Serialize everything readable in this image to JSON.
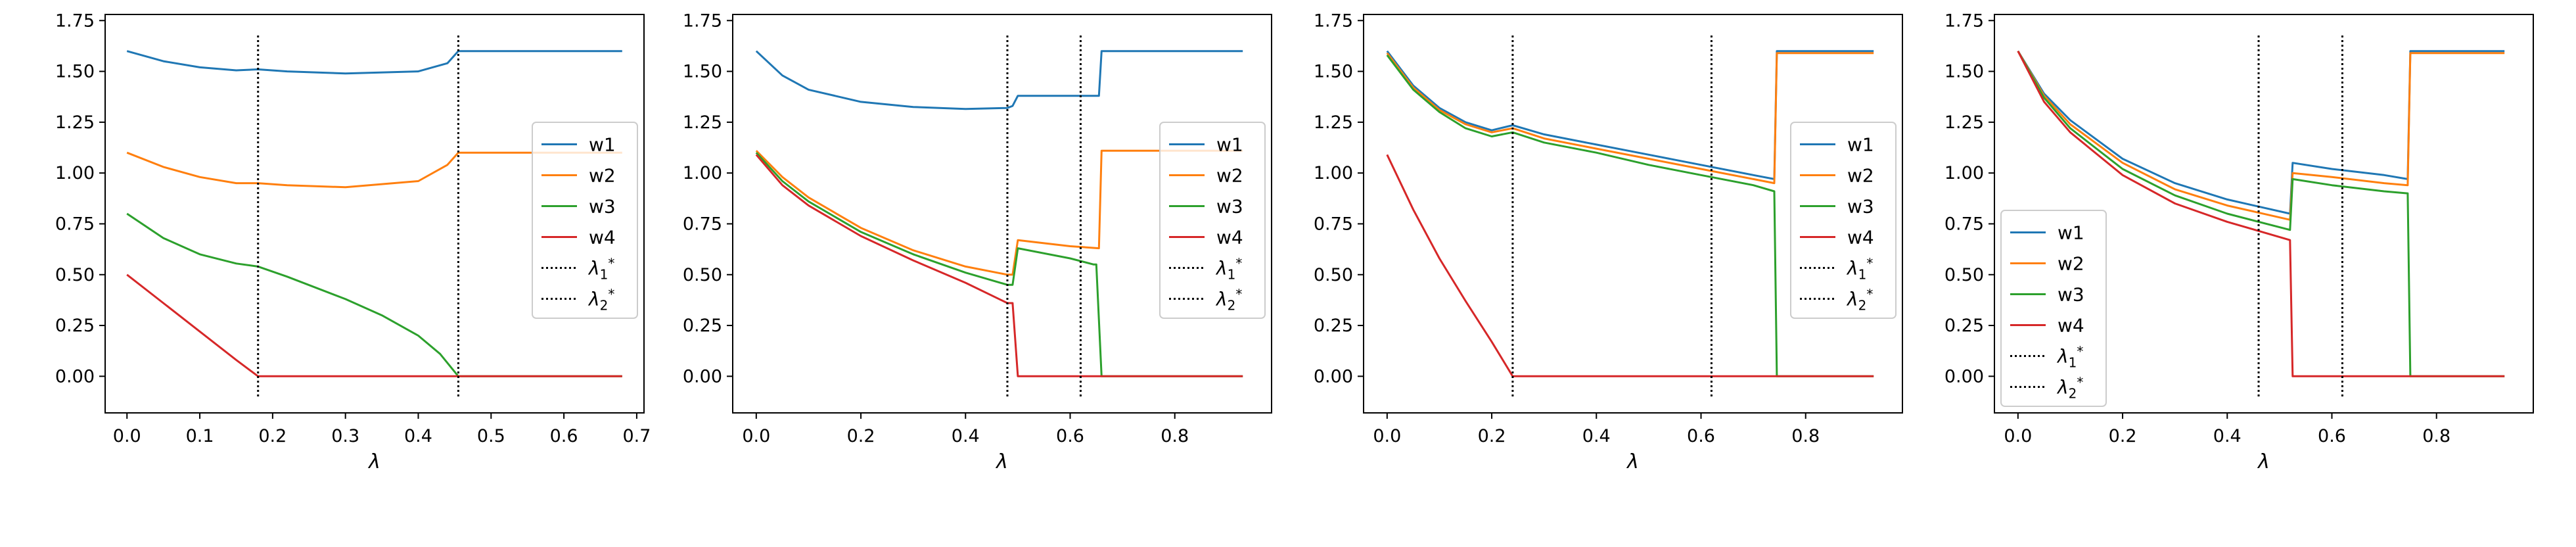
{
  "figure": {
    "panel_count": 4
  },
  "series_colors": {
    "w1": "#1f77b4",
    "w2": "#ff7f0e",
    "w3": "#2ca02c",
    "w4": "#d62728"
  },
  "chart_data": [
    {
      "type": "line",
      "xlabel": "λ",
      "xlim": [
        -0.03,
        0.71
      ],
      "ylim": [
        -0.18,
        1.78
      ],
      "xticks": [
        "0.0",
        "0.1",
        "0.2",
        "0.3",
        "0.4",
        "0.5",
        "0.6",
        "0.7"
      ],
      "yticks": [
        "0.00",
        "0.25",
        "0.50",
        "0.75",
        "1.00",
        "1.25",
        "1.50",
        "1.75"
      ],
      "legend_position": "right",
      "series": [
        {
          "name": "w1",
          "color": "#1f77b4",
          "x": [
            0,
            0.05,
            0.1,
            0.15,
            0.18,
            0.22,
            0.3,
            0.4,
            0.44,
            0.455,
            0.5,
            0.6,
            0.68
          ],
          "y": [
            1.6,
            1.55,
            1.52,
            1.505,
            1.51,
            1.5,
            1.49,
            1.5,
            1.54,
            1.6,
            1.6,
            1.6,
            1.6
          ]
        },
        {
          "name": "w2",
          "color": "#ff7f0e",
          "x": [
            0,
            0.05,
            0.1,
            0.15,
            0.18,
            0.22,
            0.3,
            0.4,
            0.44,
            0.455,
            0.5,
            0.6,
            0.68
          ],
          "y": [
            1.1,
            1.03,
            0.98,
            0.95,
            0.95,
            0.94,
            0.93,
            0.96,
            1.04,
            1.1,
            1.1,
            1.1,
            1.1
          ]
        },
        {
          "name": "w3",
          "color": "#2ca02c",
          "x": [
            0,
            0.05,
            0.1,
            0.15,
            0.18,
            0.22,
            0.3,
            0.35,
            0.4,
            0.43,
            0.455,
            0.5,
            0.6,
            0.68
          ],
          "y": [
            0.8,
            0.68,
            0.6,
            0.555,
            0.54,
            0.49,
            0.38,
            0.3,
            0.2,
            0.11,
            0.0,
            0.0,
            0.0,
            0.0
          ]
        },
        {
          "name": "w4",
          "color": "#d62728",
          "x": [
            0,
            0.05,
            0.1,
            0.15,
            0.18,
            0.25,
            0.4,
            0.55,
            0.68
          ],
          "y": [
            0.5,
            0.36,
            0.22,
            0.08,
            0.0,
            0.0,
            0.0,
            0.0,
            0.0
          ]
        }
      ],
      "vlines": [
        {
          "label": "λ1*",
          "x": 0.18
        },
        {
          "label": "λ2*",
          "x": 0.455
        }
      ]
    },
    {
      "type": "line",
      "xlabel": "λ",
      "xlim": [
        -0.045,
        0.985
      ],
      "ylim": [
        -0.18,
        1.78
      ],
      "xticks": [
        "0.0",
        "0.2",
        "0.4",
        "0.6",
        "0.8"
      ],
      "yticks": [
        "0.00",
        "0.25",
        "0.50",
        "0.75",
        "1.00",
        "1.25",
        "1.50",
        "1.75"
      ],
      "legend_position": "right",
      "series": [
        {
          "name": "w1",
          "color": "#1f77b4",
          "x": [
            0,
            0.05,
            0.1,
            0.2,
            0.3,
            0.4,
            0.48,
            0.49,
            0.5,
            0.6,
            0.655,
            0.66,
            0.8,
            0.93
          ],
          "y": [
            1.6,
            1.48,
            1.41,
            1.35,
            1.325,
            1.315,
            1.32,
            1.33,
            1.38,
            1.38,
            1.38,
            1.6,
            1.6,
            1.6
          ]
        },
        {
          "name": "w2",
          "color": "#ff7f0e",
          "x": [
            0,
            0.05,
            0.1,
            0.2,
            0.3,
            0.4,
            0.48,
            0.49,
            0.5,
            0.6,
            0.655,
            0.66,
            0.8,
            0.93
          ],
          "y": [
            1.11,
            0.98,
            0.88,
            0.73,
            0.62,
            0.54,
            0.5,
            0.5,
            0.67,
            0.64,
            0.63,
            1.11,
            1.11,
            1.11
          ]
        },
        {
          "name": "w3",
          "color": "#2ca02c",
          "x": [
            0,
            0.05,
            0.1,
            0.2,
            0.3,
            0.4,
            0.48,
            0.49,
            0.5,
            0.6,
            0.645,
            0.65,
            0.66,
            0.8,
            0.93
          ],
          "y": [
            1.1,
            0.96,
            0.86,
            0.71,
            0.6,
            0.51,
            0.45,
            0.45,
            0.63,
            0.58,
            0.55,
            0.55,
            0.0,
            0.0,
            0.0
          ]
        },
        {
          "name": "w4",
          "color": "#d62728",
          "x": [
            0,
            0.05,
            0.1,
            0.2,
            0.3,
            0.4,
            0.48,
            0.49,
            0.5,
            0.6,
            0.8,
            0.93
          ],
          "y": [
            1.09,
            0.94,
            0.84,
            0.69,
            0.57,
            0.46,
            0.36,
            0.36,
            0.0,
            0.0,
            0.0,
            0.0
          ]
        }
      ],
      "vlines": [
        {
          "label": "λ1*",
          "x": 0.48
        },
        {
          "label": "λ2*",
          "x": 0.62
        }
      ]
    },
    {
      "type": "line",
      "xlabel": "λ",
      "xlim": [
        -0.045,
        0.985
      ],
      "ylim": [
        -0.18,
        1.78
      ],
      "xticks": [
        "0.0",
        "0.2",
        "0.4",
        "0.6",
        "0.8"
      ],
      "yticks": [
        "0.00",
        "0.25",
        "0.50",
        "0.75",
        "1.00",
        "1.25",
        "1.50",
        "1.75"
      ],
      "legend_position": "right",
      "series": [
        {
          "name": "w1",
          "color": "#1f77b4",
          "x": [
            0,
            0.05,
            0.1,
            0.15,
            0.2,
            0.24,
            0.3,
            0.4,
            0.5,
            0.6,
            0.7,
            0.74,
            0.745,
            0.8,
            0.93
          ],
          "y": [
            1.6,
            1.43,
            1.32,
            1.25,
            1.21,
            1.235,
            1.19,
            1.14,
            1.09,
            1.04,
            0.99,
            0.97,
            1.6,
            1.6,
            1.6
          ]
        },
        {
          "name": "w2",
          "color": "#ff7f0e",
          "x": [
            0,
            0.05,
            0.1,
            0.15,
            0.2,
            0.24,
            0.3,
            0.4,
            0.5,
            0.6,
            0.7,
            0.74,
            0.745,
            0.8,
            0.93
          ],
          "y": [
            1.59,
            1.42,
            1.31,
            1.24,
            1.2,
            1.22,
            1.17,
            1.12,
            1.07,
            1.02,
            0.97,
            0.95,
            1.59,
            1.59,
            1.59
          ]
        },
        {
          "name": "w3",
          "color": "#2ca02c",
          "x": [
            0,
            0.05,
            0.1,
            0.15,
            0.2,
            0.24,
            0.3,
            0.4,
            0.5,
            0.6,
            0.7,
            0.74,
            0.745,
            0.8,
            0.93
          ],
          "y": [
            1.58,
            1.41,
            1.3,
            1.22,
            1.18,
            1.2,
            1.15,
            1.1,
            1.04,
            0.99,
            0.94,
            0.91,
            0.0,
            0.0,
            0.0
          ]
        },
        {
          "name": "w4",
          "color": "#d62728",
          "x": [
            0,
            0.05,
            0.1,
            0.15,
            0.2,
            0.24,
            0.3,
            0.5,
            0.7,
            0.93
          ],
          "y": [
            1.09,
            0.82,
            0.58,
            0.37,
            0.17,
            0.0,
            0.0,
            0.0,
            0.0,
            0.0
          ]
        }
      ],
      "vlines": [
        {
          "label": "λ1*",
          "x": 0.24
        },
        {
          "label": "λ2*",
          "x": 0.62
        }
      ]
    },
    {
      "type": "line",
      "xlabel": "λ",
      "xlim": [
        -0.045,
        0.985
      ],
      "ylim": [
        -0.18,
        1.78
      ],
      "xticks": [
        "0.0",
        "0.2",
        "0.4",
        "0.6",
        "0.8"
      ],
      "yticks": [
        "0.00",
        "0.25",
        "0.50",
        "0.75",
        "1.00",
        "1.25",
        "1.50",
        "1.75"
      ],
      "legend_position": "lower-left",
      "series": [
        {
          "name": "w1",
          "color": "#1f77b4",
          "x": [
            0,
            0.05,
            0.1,
            0.2,
            0.3,
            0.4,
            0.52,
            0.525,
            0.6,
            0.7,
            0.745,
            0.75,
            0.8,
            0.93
          ],
          "y": [
            1.6,
            1.39,
            1.26,
            1.07,
            0.95,
            0.87,
            0.8,
            1.05,
            1.02,
            0.99,
            0.97,
            1.6,
            1.6,
            1.6
          ]
        },
        {
          "name": "w2",
          "color": "#ff7f0e",
          "x": [
            0,
            0.05,
            0.1,
            0.2,
            0.3,
            0.4,
            0.52,
            0.525,
            0.6,
            0.7,
            0.745,
            0.75,
            0.8,
            0.93
          ],
          "y": [
            1.6,
            1.38,
            1.24,
            1.05,
            0.92,
            0.84,
            0.77,
            1.0,
            0.98,
            0.95,
            0.94,
            1.59,
            1.59,
            1.59
          ]
        },
        {
          "name": "w3",
          "color": "#2ca02c",
          "x": [
            0,
            0.05,
            0.1,
            0.2,
            0.3,
            0.4,
            0.52,
            0.525,
            0.6,
            0.7,
            0.745,
            0.75,
            0.8,
            0.93
          ],
          "y": [
            1.6,
            1.37,
            1.22,
            1.02,
            0.89,
            0.8,
            0.72,
            0.97,
            0.94,
            0.91,
            0.9,
            0.0,
            0.0,
            0.0
          ]
        },
        {
          "name": "w4",
          "color": "#d62728",
          "x": [
            0,
            0.05,
            0.1,
            0.2,
            0.3,
            0.4,
            0.52,
            0.525,
            0.6,
            0.8,
            0.93
          ],
          "y": [
            1.6,
            1.35,
            1.2,
            0.99,
            0.85,
            0.76,
            0.67,
            0.0,
            0.0,
            0.0,
            0.0
          ]
        }
      ],
      "vlines": [
        {
          "label": "λ1*",
          "x": 0.46
        },
        {
          "label": "λ2*",
          "x": 0.62
        }
      ]
    }
  ]
}
